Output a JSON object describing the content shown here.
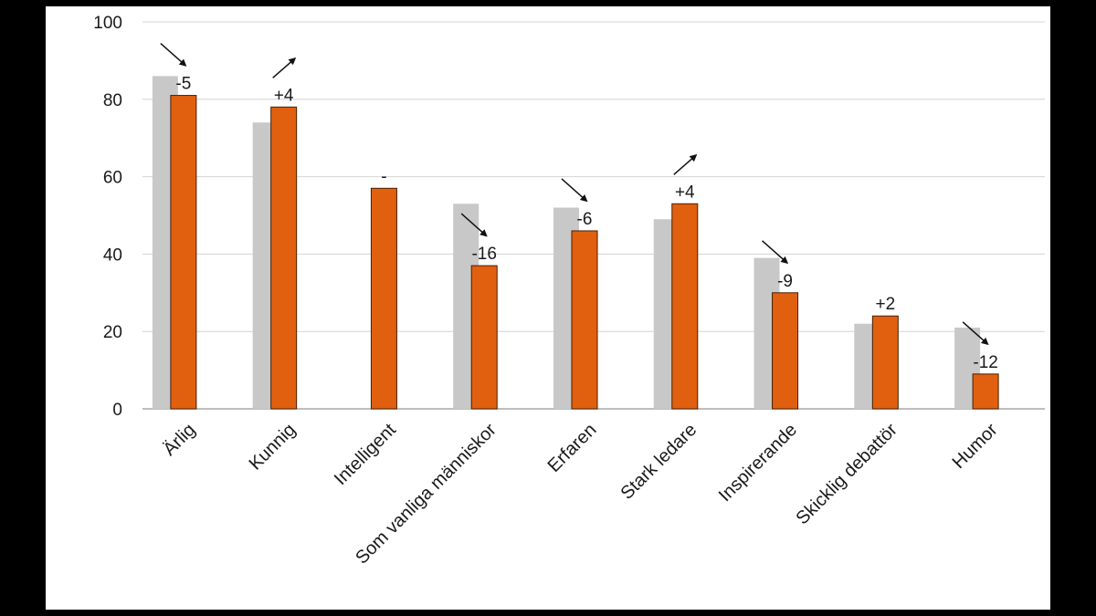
{
  "chart_data": {
    "type": "bar",
    "title": "",
    "xlabel": "",
    "ylabel": "",
    "ylim": [
      0,
      100
    ],
    "yticks": [
      0,
      20,
      40,
      60,
      80,
      100
    ],
    "grid": true,
    "legend": "none",
    "categories": [
      "Ärlig",
      "Kunnig",
      "Intelligent",
      "Som vanliga människor",
      "Erfaren",
      "Stark ledare",
      "Inspirerande",
      "Skicklig debattör",
      "Humor"
    ],
    "series": [
      {
        "color": "#c8c8c8",
        "values": [
          86,
          74,
          null,
          53,
          52,
          49,
          39,
          22,
          21
        ]
      },
      {
        "color": "#e06010",
        "values": [
          81,
          78,
          57,
          37,
          46,
          53,
          30,
          24,
          9
        ]
      }
    ],
    "changes": [
      "-5",
      "+4",
      "-",
      "-16",
      "-6",
      "+4",
      "-9",
      "+2",
      "-12"
    ],
    "change_arrows": [
      "down",
      "up",
      "none",
      "down",
      "down",
      "up",
      "down",
      "none",
      "down"
    ]
  }
}
